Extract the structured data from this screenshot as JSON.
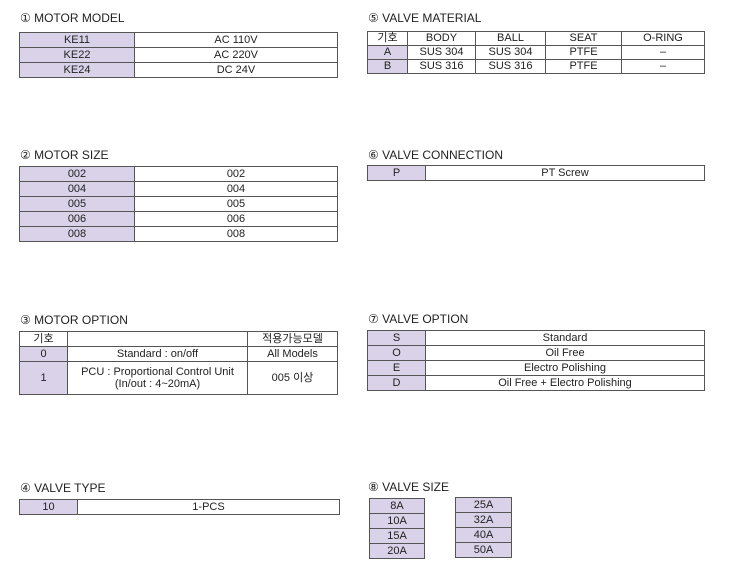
{
  "motor_model": {
    "title": "① MOTOR MODEL",
    "rows": [
      {
        "code": "KE11",
        "value": "AC 110V"
      },
      {
        "code": "KE22",
        "value": "AC 220V"
      },
      {
        "code": "KE24",
        "value": "DC 24V"
      }
    ]
  },
  "motor_size": {
    "title": "② MOTOR SIZE",
    "rows": [
      {
        "code": "002",
        "value": "002"
      },
      {
        "code": "004",
        "value": "004"
      },
      {
        "code": "005",
        "value": "005"
      },
      {
        "code": "006",
        "value": "006"
      },
      {
        "code": "008",
        "value": "008"
      }
    ]
  },
  "motor_option": {
    "title": "③ MOTOR OPTION",
    "headers": {
      "code": "기호",
      "desc": "",
      "models": "적용가능모델"
    },
    "rows": [
      {
        "code": "0",
        "desc": "Standard  :  on/off",
        "models": "All Models"
      },
      {
        "code": "1",
        "desc": "PCU : Proportional Control Unit (In/out : 4~20mA)",
        "models": "005 이상"
      }
    ]
  },
  "valve_type": {
    "title": "④ VALVE TYPE",
    "rows": [
      {
        "code": "10",
        "value": "1-PCS"
      }
    ]
  },
  "valve_material": {
    "title": "⑤ VALVE MATERIAL",
    "headers": {
      "code": "기호",
      "body": "BODY",
      "ball": "BALL",
      "seat": "SEAT",
      "oring": "O-RING"
    },
    "rows": [
      {
        "code": "A",
        "body": "SUS 304",
        "ball": "SUS 304",
        "seat": "PTFE",
        "oring": "–"
      },
      {
        "code": "B",
        "body": "SUS 316",
        "ball": "SUS 316",
        "seat": "PTFE",
        "oring": "–"
      }
    ]
  },
  "valve_connection": {
    "title": "⑥ VALVE CONNECTION",
    "rows": [
      {
        "code": "P",
        "value": "PT Screw"
      }
    ]
  },
  "valve_option": {
    "title": "⑦ VALVE OPTION",
    "rows": [
      {
        "code": "S",
        "value": "Standard"
      },
      {
        "code": "O",
        "value": "Oil Free"
      },
      {
        "code": "E",
        "value": "Electro Polishing"
      },
      {
        "code": "D",
        "value": "Oil Free + Electro Polishing"
      }
    ]
  },
  "valve_size": {
    "title": "⑧ VALVE SIZE",
    "col1": [
      "8A",
      "10A",
      "15A",
      "20A"
    ],
    "col2": [
      "25A",
      "32A",
      "40A",
      "50A"
    ]
  }
}
